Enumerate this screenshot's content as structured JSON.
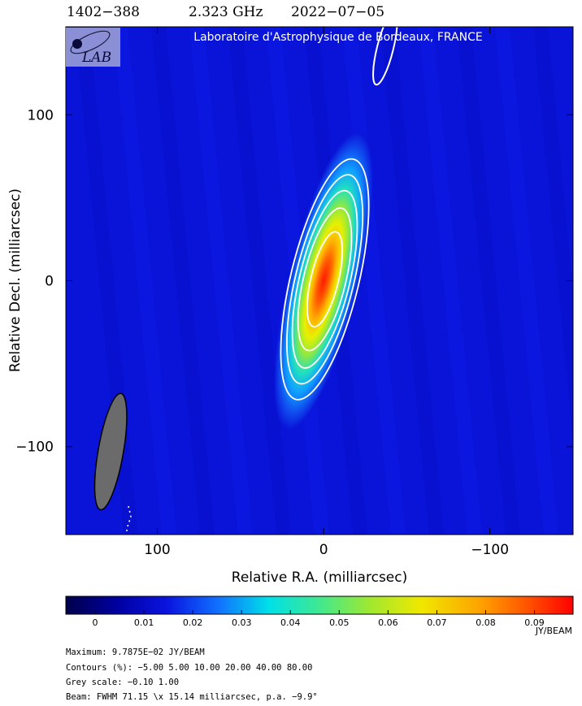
{
  "header": {
    "source": "1402−388",
    "frequency": "2.323 GHz",
    "date": "2022−07−05"
  },
  "banner": {
    "text": "Laboratoire d'Astrophysique de Bordeaux, FRANCE",
    "logo_text": "LAB"
  },
  "chart_data": {
    "type": "heatmap",
    "xlabel": "Relative R.A. (milliarcsec)",
    "ylabel": "Relative Decl. (milliarcsec)",
    "xlim": [
      155,
      -150
    ],
    "ylim": [
      -153,
      153
    ],
    "x_ticks": [
      100,
      0,
      -100
    ],
    "x_tick_labels": [
      "100",
      "0",
      "−100"
    ],
    "y_ticks": [
      100,
      0,
      -100
    ],
    "y_tick_labels": [
      "100",
      "0",
      "−100"
    ],
    "colorbar": {
      "range": [
        -0.006,
        0.0979
      ],
      "ticks": [
        0,
        0.01,
        0.02,
        0.03,
        0.04,
        0.05,
        0.06,
        0.07,
        0.08,
        0.09
      ],
      "tick_labels": [
        "0",
        "0.01",
        "0.02",
        "0.03",
        "0.04",
        "0.05",
        "0.06",
        "0.07",
        "0.08",
        "0.09"
      ],
      "unit": "JY/BEAM"
    },
    "peak_jy_per_beam": 0.097875,
    "contour_levels_percent": [
      -5,
      5,
      10,
      20,
      40,
      80
    ],
    "source_component": {
      "x": 0,
      "y": 0,
      "major_fwhm": 71.15,
      "minor_fwhm": 15.14,
      "pa_deg": -9.9
    },
    "secondary_contour": {
      "x": -37,
      "y": 140,
      "level_percent": 5
    },
    "beam": {
      "major": 71.15,
      "minor": 15.14,
      "pa_deg": -9.9,
      "x": 128,
      "y": -103
    },
    "grid": false
  },
  "footer": {
    "maximum": "Maximum: 9.7875E−02 JY/BEAM",
    "contours": "Contours (%): −5.00 5.00 10.00 20.00 40.00 80.00",
    "grey_scale": "Grey scale: −0.10 1.00",
    "beam": "Beam: FWHM 71.15 \\x 15.14 milliarcsec, p.a. −9.9°"
  },
  "colors": {
    "background": "#0a14d8",
    "contour": "#ffffff",
    "beam_fill": "#6b6b6b",
    "logo_bg": "#8a8fd6"
  }
}
